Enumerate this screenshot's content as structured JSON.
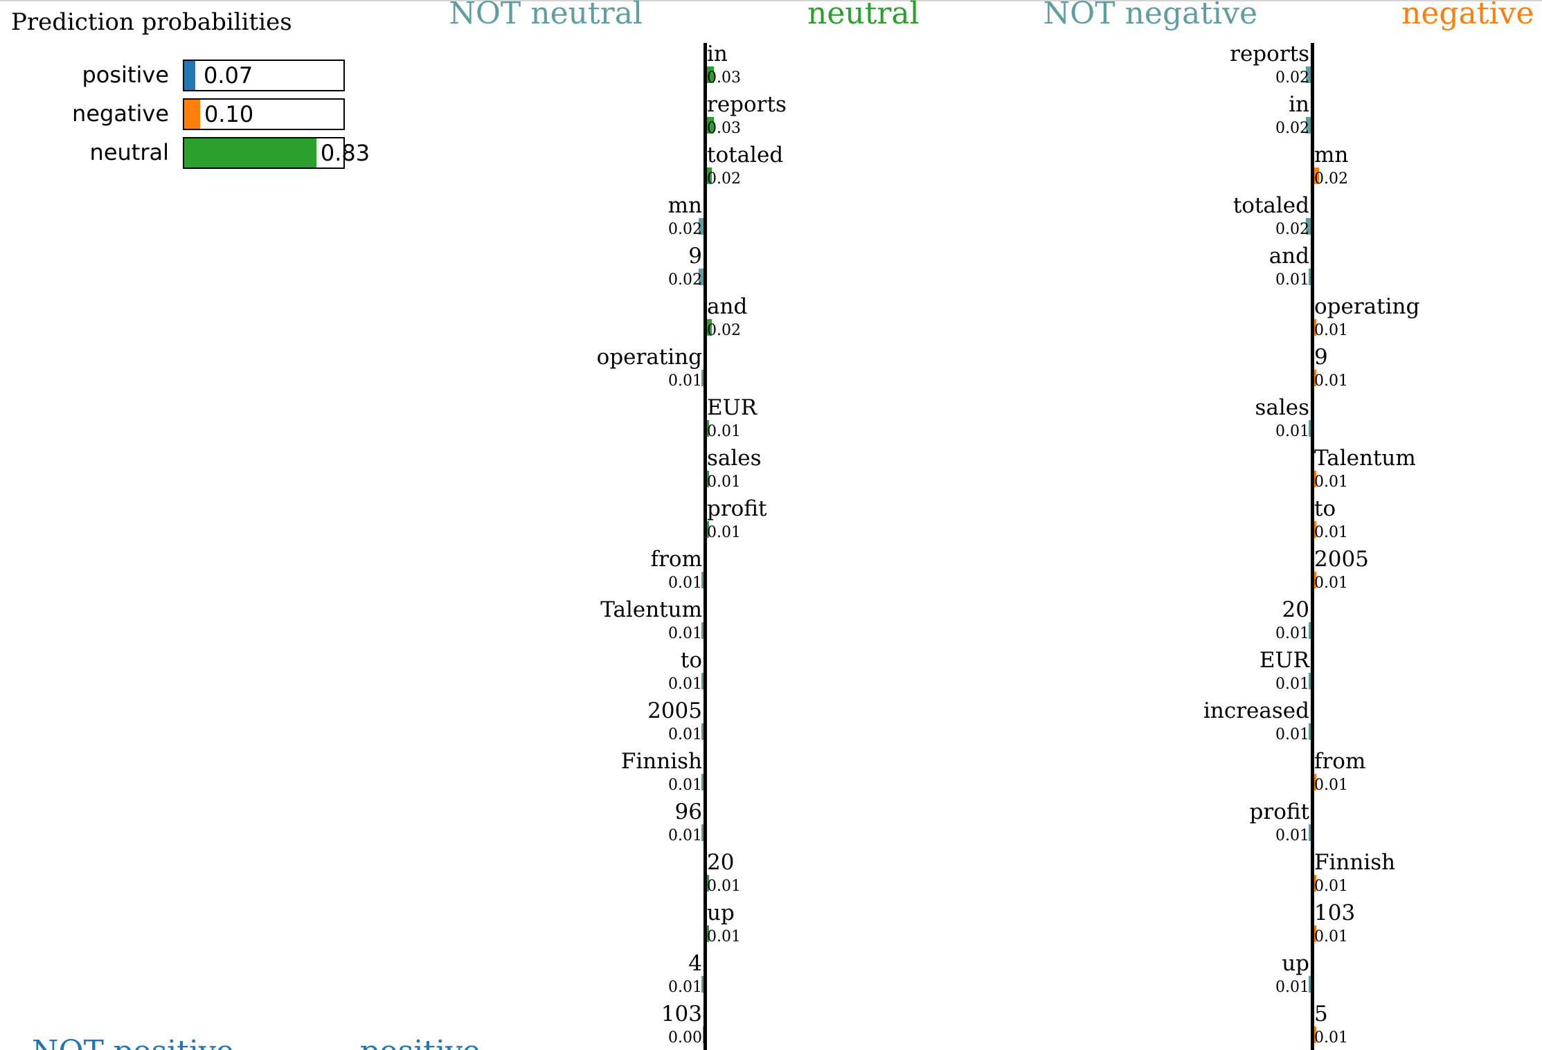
{
  "prediction": {
    "title": "Prediction probabilities",
    "classes": [
      {
        "label": "positive",
        "value": 0.07,
        "text": "0.07",
        "color": "#1f77b4"
      },
      {
        "label": "negative",
        "value": 0.1,
        "text": "0.10",
        "color": "#ff7f0e"
      },
      {
        "label": "neutral",
        "value": 0.83,
        "text": "0.83",
        "color": "#2ca02c"
      }
    ]
  },
  "chart_data": [
    {
      "type": "bar",
      "orientation": "horizontal",
      "left_label": "NOT neutral",
      "right_label": "neutral",
      "left_color": "#5f9ea0",
      "right_color": "#2ca02c",
      "features": [
        {
          "word": "in",
          "value": 0.03,
          "label": "0.03",
          "side": "right"
        },
        {
          "word": "reports",
          "value": 0.03,
          "label": "0.03",
          "side": "right"
        },
        {
          "word": "totaled",
          "value": 0.02,
          "label": "0.02",
          "side": "right"
        },
        {
          "word": "mn",
          "value": 0.02,
          "label": "0.02",
          "side": "left"
        },
        {
          "word": "9",
          "value": 0.02,
          "label": "0.02",
          "side": "left"
        },
        {
          "word": "and",
          "value": 0.02,
          "label": "0.02",
          "side": "right"
        },
        {
          "word": "operating",
          "value": 0.01,
          "label": "0.01",
          "side": "left"
        },
        {
          "word": "EUR",
          "value": 0.01,
          "label": "0.01",
          "side": "right"
        },
        {
          "word": "sales",
          "value": 0.01,
          "label": "0.01",
          "side": "right"
        },
        {
          "word": "profit",
          "value": 0.01,
          "label": "0.01",
          "side": "right"
        },
        {
          "word": "from",
          "value": 0.01,
          "label": "0.01",
          "side": "left"
        },
        {
          "word": "Talentum",
          "value": 0.01,
          "label": "0.01",
          "side": "left"
        },
        {
          "word": "to",
          "value": 0.01,
          "label": "0.01",
          "side": "left"
        },
        {
          "word": "2005",
          "value": 0.01,
          "label": "0.01",
          "side": "left"
        },
        {
          "word": "Finnish",
          "value": 0.01,
          "label": "0.01",
          "side": "left"
        },
        {
          "word": "96",
          "value": 0.01,
          "label": "0.01",
          "side": "left"
        },
        {
          "word": "20",
          "value": 0.01,
          "label": "0.01",
          "side": "right"
        },
        {
          "word": "up",
          "value": 0.01,
          "label": "0.01",
          "side": "right"
        },
        {
          "word": "4",
          "value": 0.01,
          "label": "0.01",
          "side": "left"
        },
        {
          "word": "103",
          "value": 0.0,
          "label": "0.00",
          "side": "left"
        }
      ]
    },
    {
      "type": "bar",
      "orientation": "horizontal",
      "left_label": "NOT negative",
      "right_label": "negative",
      "left_color": "#5f9ea0",
      "right_color": "#ff7f0e",
      "features": [
        {
          "word": "reports",
          "value": 0.02,
          "label": "0.02",
          "side": "left"
        },
        {
          "word": "in",
          "value": 0.02,
          "label": "0.02",
          "side": "left"
        },
        {
          "word": "mn",
          "value": 0.02,
          "label": "0.02",
          "side": "right"
        },
        {
          "word": "totaled",
          "value": 0.02,
          "label": "0.02",
          "side": "left"
        },
        {
          "word": "and",
          "value": 0.01,
          "label": "0.01",
          "side": "left"
        },
        {
          "word": "operating",
          "value": 0.01,
          "label": "0.01",
          "side": "right"
        },
        {
          "word": "9",
          "value": 0.01,
          "label": "0.01",
          "side": "right"
        },
        {
          "word": "sales",
          "value": 0.01,
          "label": "0.01",
          "side": "left"
        },
        {
          "word": "Talentum",
          "value": 0.01,
          "label": "0.01",
          "side": "right"
        },
        {
          "word": "to",
          "value": 0.01,
          "label": "0.01",
          "side": "right"
        },
        {
          "word": "2005",
          "value": 0.01,
          "label": "0.01",
          "side": "right"
        },
        {
          "word": "20",
          "value": 0.01,
          "label": "0.01",
          "side": "left"
        },
        {
          "word": "EUR",
          "value": 0.01,
          "label": "0.01",
          "side": "left"
        },
        {
          "word": "increased",
          "value": 0.01,
          "label": "0.01",
          "side": "left"
        },
        {
          "word": "from",
          "value": 0.01,
          "label": "0.01",
          "side": "right"
        },
        {
          "word": "profit",
          "value": 0.01,
          "label": "0.01",
          "side": "left"
        },
        {
          "word": "Finnish",
          "value": 0.01,
          "label": "0.01",
          "side": "right"
        },
        {
          "word": "103",
          "value": 0.01,
          "label": "0.01",
          "side": "right"
        },
        {
          "word": "up",
          "value": 0.01,
          "label": "0.01",
          "side": "left"
        },
        {
          "word": "5",
          "value": 0.01,
          "label": "0.01",
          "side": "right"
        }
      ]
    }
  ],
  "cutoff_panel": {
    "left_label": "NOT positive",
    "right_label": "positive",
    "color": "#1f77b4"
  }
}
